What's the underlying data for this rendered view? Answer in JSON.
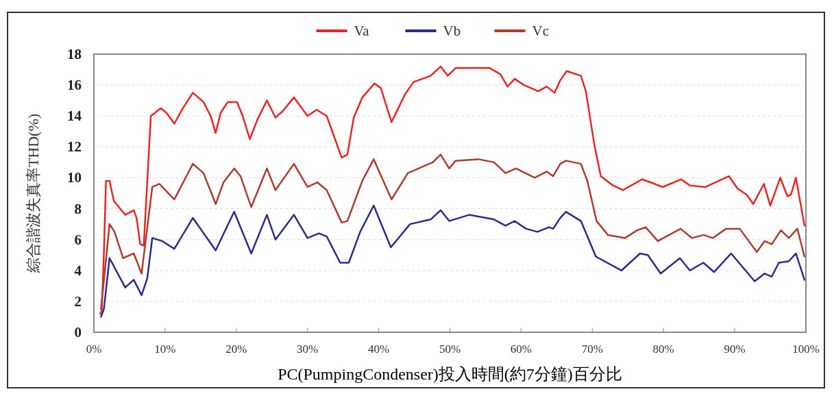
{
  "chart_data": {
    "type": "line",
    "ylabel": "綜合諧波失真率THD(%)",
    "xlabel": "PC(PumpingCondenser)投入時間(約7分鐘)百分比",
    "xlim": [
      0,
      100
    ],
    "ylim": [
      0,
      18
    ],
    "xticks": [
      {
        "value": 0,
        "label": "0%"
      },
      {
        "value": 10,
        "label": "10%"
      },
      {
        "value": 20,
        "label": "20%"
      },
      {
        "value": 30,
        "label": "30%"
      },
      {
        "value": 40,
        "label": "40%"
      },
      {
        "value": 50,
        "label": "50%"
      },
      {
        "value": 60,
        "label": "60%"
      },
      {
        "value": 70,
        "label": "70%"
      },
      {
        "value": 80,
        "label": "80%"
      },
      {
        "value": 90,
        "label": "90%"
      },
      {
        "value": 100,
        "label": "100%"
      }
    ],
    "yticks": [
      0,
      2,
      4,
      6,
      8,
      10,
      12,
      14,
      16,
      18
    ],
    "grid": "y",
    "legend": "top",
    "marker": "none",
    "line_style": "solid",
    "series": [
      {
        "name": "Va",
        "color": "#ee2222",
        "x": [
          0.9,
          1.1,
          1.4,
          1.7,
          2.2,
          2.8,
          4.4,
          5.6,
          6.0,
          6.5,
          7.0,
          7.5,
          8.0,
          9.4,
          10.2,
          11.3,
          12.5,
          13.9,
          15.4,
          16.4,
          17.1,
          17.8,
          18.8,
          20.1,
          20.9,
          21.9,
          23.0,
          24.3,
          25.5,
          26.5,
          28.1,
          30.0,
          31.3,
          32.7,
          34.8,
          35.6,
          36.5,
          37.7,
          39.4,
          40.3,
          41.8,
          43.7,
          44.9,
          47.3,
          48.7,
          49.7,
          50.8,
          55.6,
          57.1,
          58.1,
          59.1,
          60.4,
          62.4,
          63.6,
          64.7,
          65.5,
          66.4,
          68.4,
          69.1,
          70.3,
          71.2,
          72.9,
          74.3,
          77.0,
          78.2,
          79.9,
          82.5,
          83.7,
          85.9,
          89.2,
          90.4,
          91.7,
          92.6,
          94.1,
          95.0,
          96.4,
          97.4,
          97.9,
          98.6,
          99.8
        ],
        "values": [
          1.2,
          1.4,
          5.0,
          9.8,
          9.8,
          8.5,
          7.6,
          7.9,
          7.4,
          5.7,
          5.6,
          9.8,
          14.0,
          14.5,
          14.2,
          13.5,
          14.5,
          15.5,
          14.9,
          14.0,
          12.9,
          14.2,
          14.9,
          14.9,
          14.0,
          12.5,
          13.8,
          15.0,
          13.9,
          14.3,
          15.2,
          14.0,
          14.4,
          14.0,
          11.3,
          11.5,
          13.9,
          15.2,
          16.1,
          15.8,
          13.6,
          15.4,
          16.2,
          16.6,
          17.2,
          16.6,
          17.1,
          17.1,
          16.7,
          15.9,
          16.4,
          16.0,
          15.6,
          15.9,
          15.5,
          16.3,
          16.9,
          16.6,
          15.6,
          12.1,
          10.1,
          9.5,
          9.2,
          9.9,
          9.7,
          9.4,
          9.9,
          9.5,
          9.4,
          10.1,
          9.3,
          8.9,
          8.3,
          9.6,
          8.2,
          10.0,
          8.8,
          8.9,
          10.0,
          6.9
        ]
      },
      {
        "name": "Vb",
        "color": "#2a2a90",
        "x": [
          1.0,
          1.4,
          2.2,
          4.4,
          5.6,
          6.7,
          7.5,
          8.2,
          9.6,
          11.3,
          13.9,
          17.1,
          19.7,
          22.1,
          24.3,
          25.5,
          28.1,
          30.0,
          31.6,
          32.7,
          34.6,
          35.8,
          37.4,
          39.3,
          41.7,
          44.4,
          47.3,
          48.7,
          49.9,
          52.7,
          56.2,
          57.8,
          59.1,
          60.7,
          62.3,
          63.9,
          64.5,
          65.5,
          66.3,
          68.4,
          70.5,
          74.1,
          76.7,
          77.8,
          79.6,
          82.3,
          83.7,
          85.6,
          87.1,
          89.5,
          92.8,
          94.2,
          95.2,
          96.2,
          97.6,
          98.6,
          99.8
        ],
        "values": [
          1.0,
          1.5,
          4.8,
          2.9,
          3.4,
          2.4,
          3.5,
          6.1,
          5.9,
          5.4,
          7.4,
          5.3,
          7.8,
          5.1,
          7.6,
          6.0,
          7.6,
          6.1,
          6.4,
          6.2,
          4.5,
          4.5,
          6.5,
          8.2,
          5.5,
          7.0,
          7.3,
          7.9,
          7.2,
          7.6,
          7.3,
          6.9,
          7.2,
          6.7,
          6.5,
          6.8,
          6.7,
          7.4,
          7.8,
          7.2,
          4.9,
          4.0,
          5.1,
          5.0,
          3.8,
          4.8,
          4.0,
          4.5,
          3.9,
          5.1,
          3.3,
          3.8,
          3.6,
          4.5,
          4.6,
          5.1,
          3.4
        ]
      },
      {
        "name": "Vc",
        "color": "#b03a2e",
        "x": [
          1.0,
          2.2,
          2.9,
          4.1,
          5.6,
          6.7,
          7.5,
          8.2,
          9.2,
          11.3,
          13.9,
          15.4,
          17.1,
          18.2,
          19.7,
          20.6,
          22.1,
          24.3,
          25.5,
          28.1,
          30.0,
          31.4,
          32.7,
          34.8,
          35.6,
          37.7,
          39.3,
          41.8,
          44.1,
          45.6,
          47.6,
          48.7,
          49.9,
          50.8,
          54.0,
          56.2,
          57.8,
          59.3,
          61.9,
          63.6,
          64.5,
          65.5,
          66.3,
          68.4,
          69.3,
          70.6,
          72.2,
          74.6,
          76.3,
          77.5,
          79.2,
          82.4,
          84.0,
          85.6,
          86.9,
          88.8,
          90.7,
          93.1,
          94.2,
          95.2,
          96.5,
          97.6,
          98.8,
          99.8
        ],
        "values": [
          1.5,
          7.0,
          6.5,
          4.8,
          5.1,
          3.8,
          6.8,
          9.4,
          9.6,
          8.6,
          10.9,
          10.3,
          8.3,
          9.7,
          10.6,
          10.1,
          8.1,
          10.6,
          9.2,
          10.9,
          9.4,
          9.7,
          9.2,
          7.1,
          7.2,
          9.8,
          11.2,
          8.6,
          10.3,
          10.6,
          11.0,
          11.5,
          10.6,
          11.1,
          11.2,
          11.0,
          10.3,
          10.6,
          10.0,
          10.4,
          10.1,
          10.9,
          11.1,
          10.9,
          9.8,
          7.2,
          6.3,
          6.1,
          6.6,
          6.8,
          5.9,
          6.7,
          6.1,
          6.3,
          6.1,
          6.7,
          6.7,
          5.2,
          5.9,
          5.7,
          6.6,
          6.1,
          6.7,
          4.9
        ]
      }
    ]
  }
}
